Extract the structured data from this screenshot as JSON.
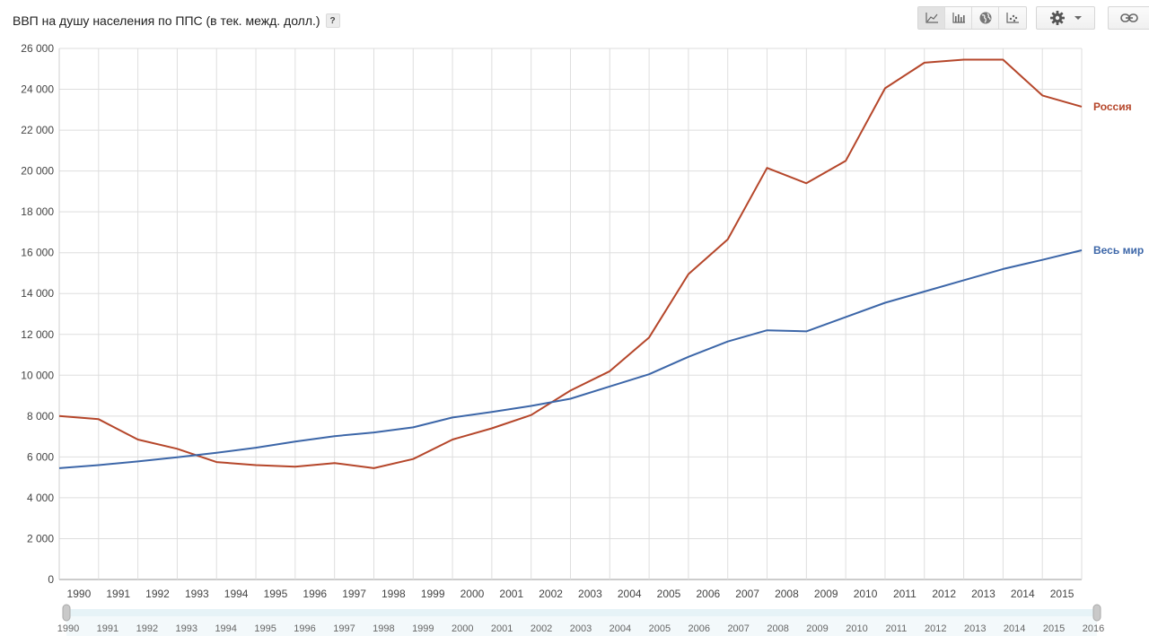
{
  "header": {
    "title": "ВВП на душу населения по ППС (в тек. межд. долл.)",
    "help_label": "?"
  },
  "toolbar": {
    "buttons": [
      {
        "icon": "line-chart-icon",
        "active": true
      },
      {
        "icon": "bar-chart-icon",
        "active": false
      },
      {
        "icon": "globe-icon",
        "active": false
      },
      {
        "icon": "scatter-chart-icon",
        "active": false
      }
    ],
    "settings_icon": "gear-icon",
    "dropdown_icon": "caret-down-icon",
    "link_icon": "link-icon"
  },
  "colors": {
    "russia": "#b5462a",
    "world": "#3c66a8",
    "grid": "#dedede",
    "slider_track": "#e6f3f7"
  },
  "chart_data": {
    "type": "line",
    "title": "ВВП на душу населения по ППС (в тек. межд. долл.)",
    "xlabel": "",
    "ylabel": "",
    "x": [
      1990,
      1991,
      1992,
      1993,
      1994,
      1995,
      1996,
      1997,
      1998,
      1999,
      2000,
      2001,
      2002,
      2003,
      2004,
      2005,
      2006,
      2007,
      2008,
      2009,
      2010,
      2011,
      2012,
      2013,
      2014,
      2015,
      2016
    ],
    "x_tick_labels": [
      "1990",
      "1991",
      "1992",
      "1993",
      "1994",
      "1995",
      "1996",
      "1997",
      "1998",
      "1999",
      "2000",
      "2001",
      "2002",
      "2003",
      "2004",
      "2005",
      "2006",
      "2007",
      "2008",
      "2009",
      "2010",
      "2011",
      "2012",
      "2013",
      "2014",
      "2015"
    ],
    "y_tick_labels": [
      "0",
      "2 000",
      "4 000",
      "6 000",
      "8 000",
      "10 000",
      "12 000",
      "14 000",
      "16 000",
      "18 000",
      "20 000",
      "22 000",
      "24 000",
      "26 000"
    ],
    "ylim": [
      0,
      26000
    ],
    "grid": true,
    "legend": "inline-right",
    "series": [
      {
        "name": "Россия",
        "color": "#b5462a",
        "values": [
          8000,
          7850,
          6850,
          6400,
          5750,
          5600,
          5520,
          5700,
          5450,
          5900,
          6850,
          7400,
          8050,
          9250,
          10200,
          11850,
          14950,
          16650,
          20150,
          19400,
          20500,
          24050,
          25300,
          25450,
          25450,
          23700,
          23150
        ]
      },
      {
        "name": "Весь мир",
        "color": "#3c66a8",
        "values": [
          5450,
          5600,
          5780,
          5980,
          6200,
          6450,
          6750,
          7020,
          7200,
          7450,
          7930,
          8200,
          8500,
          8850,
          9450,
          10050,
          10900,
          11650,
          12200,
          12150,
          12850,
          13550,
          14100,
          14650,
          15200,
          15650,
          16120
        ]
      }
    ]
  },
  "slider": {
    "labels": [
      "1990",
      "1991",
      "1992",
      "1993",
      "1994",
      "1995",
      "1996",
      "1997",
      "1998",
      "1999",
      "2000",
      "2001",
      "2002",
      "2003",
      "2004",
      "2005",
      "2006",
      "2007",
      "2008",
      "2009",
      "2010",
      "2011",
      "2012",
      "2013",
      "2014",
      "2015",
      "2016"
    ],
    "start": 1990,
    "end": 2016
  }
}
